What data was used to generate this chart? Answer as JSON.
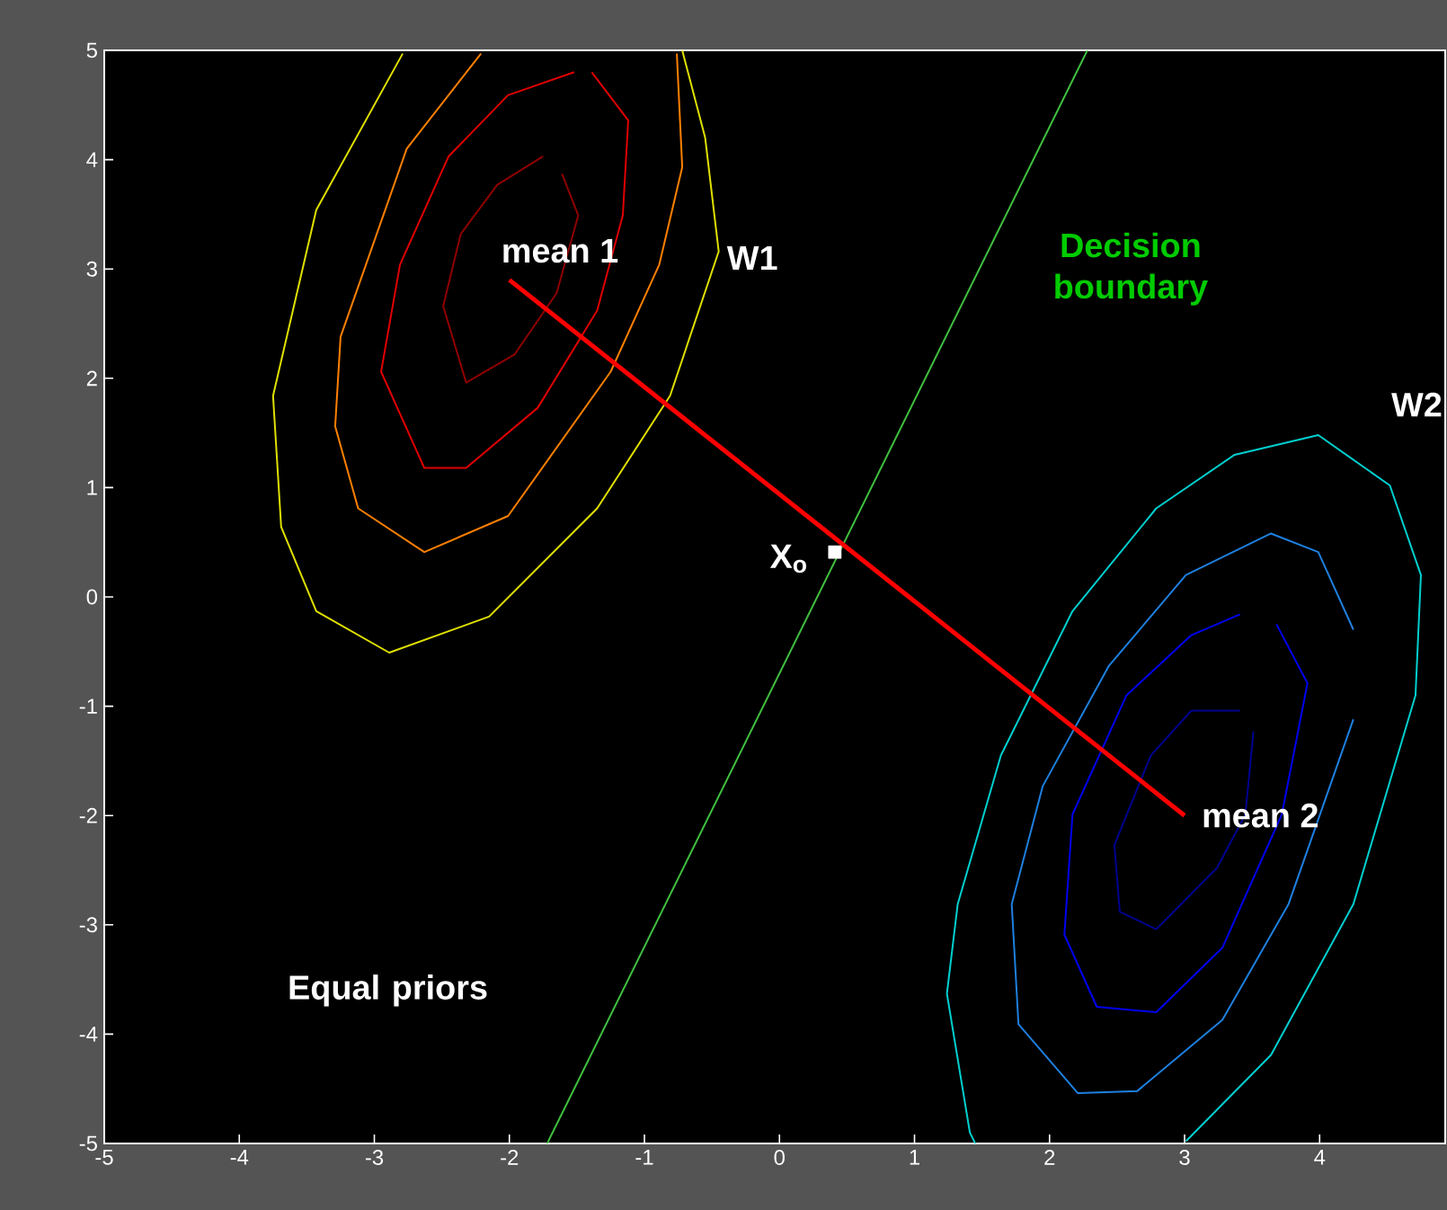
{
  "chart_data": {
    "type": "line",
    "xlim": [
      -5,
      4.93
    ],
    "ylim": [
      -5,
      5
    ],
    "xticks": [
      -5,
      -4,
      -3,
      -2,
      -1,
      0,
      1,
      2,
      3,
      4
    ],
    "yticks": [
      -5,
      -4,
      -3,
      -2,
      -1,
      0,
      1,
      2,
      3,
      4,
      5
    ],
    "grid": false,
    "marker": "none",
    "line_style": "solid",
    "series": [
      {
        "color": "#e0e000",
        "x": [
          -2.79,
          -3.43,
          -3.75,
          -3.69,
          -3.43,
          -2.89,
          -2.15,
          -1.35,
          -0.81,
          -0.45,
          -0.55,
          -0.72
        ],
        "values": [
          4.97,
          3.54,
          1.84,
          0.64,
          -0.13,
          -0.51,
          -0.18,
          0.81,
          1.84,
          3.16,
          4.2,
          5
        ]
      },
      {
        "color": "#ff8000",
        "x": [
          -2.21,
          -2.76,
          -3.25,
          -3.29,
          -3.12,
          -2.63,
          -2.01,
          -1.25,
          -0.89,
          -0.72,
          -0.76
        ],
        "values": [
          4.97,
          4.1,
          2.38,
          1.56,
          0.81,
          0.41,
          0.74,
          2.06,
          3.04,
          3.93,
          4.97
        ]
      },
      {
        "color": "#e00000",
        "x": [
          -1.52,
          -2.01,
          -2.45,
          -2.81,
          -2.95,
          -2.63,
          -2.32,
          -1.79,
          -1.35,
          -1.16,
          -1.12,
          -1.39
        ],
        "values": [
          4.8,
          4.59,
          4.03,
          3.04,
          2.06,
          1.18,
          1.18,
          1.73,
          2.62,
          3.49,
          4.36,
          4.8
        ]
      },
      {
        "color": "#900000",
        "x": [
          -1.75,
          -2.09,
          -2.36,
          -2.49,
          -2.32,
          -1.96,
          -1.65,
          -1.49,
          -1.61
        ],
        "values": [
          4.03,
          3.77,
          3.32,
          2.66,
          1.96,
          2.22,
          2.78,
          3.49,
          3.87
        ]
      },
      {
        "color": "#00d0d0",
        "x": [
          3.01,
          3.64,
          4.25,
          4.71,
          4.75,
          4.52,
          3.99,
          3.37,
          2.79,
          2.17,
          1.64,
          1.32,
          1.24,
          1.41,
          1.45
        ],
        "values": [
          -4.98,
          -4.19,
          -2.81,
          -0.9,
          0.2,
          1.02,
          1.48,
          1.3,
          0.81,
          -0.13,
          -1.45,
          -2.81,
          -3.63,
          -4.9,
          -5
        ]
      },
      {
        "color": "#1e80e0",
        "x": [
          4.25,
          3.99,
          3.64,
          3.01,
          2.44,
          1.95,
          1.72,
          1.77,
          2.21,
          2.65,
          3.28,
          3.77,
          4.25
        ],
        "values": [
          -0.3,
          0.41,
          0.58,
          0.2,
          -0.63,
          -1.73,
          -2.81,
          -3.91,
          -4.54,
          -4.52,
          -3.87,
          -2.81,
          -1.12
        ]
      },
      {
        "color": "#0000f0",
        "x": [
          3.41,
          3.05,
          2.57,
          2.17,
          2.11,
          2.35,
          2.79,
          3.28,
          3.72,
          3.91,
          3.68
        ],
        "values": [
          -0.16,
          -0.35,
          -0.9,
          -1.99,
          -3.09,
          -3.75,
          -3.8,
          -3.21,
          -1.99,
          -0.79,
          -0.25
        ]
      },
      {
        "color": "#000090",
        "x": [
          3.41,
          3.05,
          2.75,
          2.48,
          2.52,
          2.79,
          3.24,
          3.45,
          3.51
        ],
        "values": [
          -1.04,
          -1.04,
          -1.45,
          -2.27,
          -2.88,
          -3.04,
          -2.48,
          -1.99,
          -1.23
        ]
      },
      {
        "color": "#40c040",
        "x": [
          -1.72,
          2.28
        ],
        "values": [
          -5,
          5
        ]
      },
      {
        "color": "#ff0000",
        "x": [
          -2,
          3
        ],
        "values": [
          2.9,
          -2
        ]
      },
      {
        "type": "scatter",
        "marker": "square",
        "color": "#ffffff",
        "x": [
          0.41
        ],
        "values": [
          0.41
        ]
      }
    ],
    "annotations": [
      {
        "text": "mean 1",
        "x": -2,
        "y": 2.9
      },
      {
        "text": "mean 2",
        "x": 3,
        "y": -2
      },
      "W1",
      "W2",
      "Decision boundary",
      "Equal priors",
      "X$_{o}$"
    ]
  }
}
